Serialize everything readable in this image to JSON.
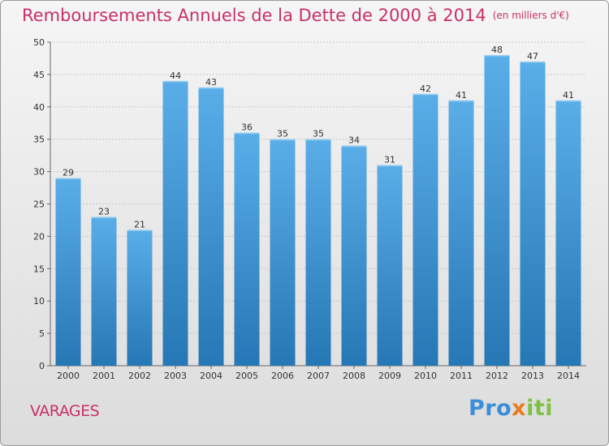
{
  "header": {
    "title": "Remboursements Annuels de la Dette de 2000 à 2014",
    "unit": "(en milliers d'€)"
  },
  "footer": {
    "location": "VARAGES",
    "brand_parts": [
      "Pro",
      "x",
      "iti"
    ]
  },
  "colors": {
    "bar_top": "#5aaee8",
    "bar_bottom": "#2677b5",
    "title": "#c8306a",
    "grid": "#c8c8c8"
  },
  "chart_data": {
    "type": "bar",
    "title": "Remboursements Annuels de la Dette de 2000 à 2014",
    "subtitle": "(en milliers d'€)",
    "categories": [
      "2000",
      "2001",
      "2002",
      "2003",
      "2004",
      "2005",
      "2006",
      "2007",
      "2008",
      "2009",
      "2010",
      "2011",
      "2012",
      "2013",
      "2014"
    ],
    "values": [
      29,
      23,
      21,
      44,
      43,
      36,
      35,
      35,
      34,
      31,
      42,
      41,
      48,
      47,
      41
    ],
    "ylim": [
      0,
      50
    ],
    "yticks": [
      0,
      5,
      10,
      15,
      20,
      25,
      30,
      35,
      40,
      45,
      50
    ],
    "grid": true,
    "data_labels": true
  }
}
